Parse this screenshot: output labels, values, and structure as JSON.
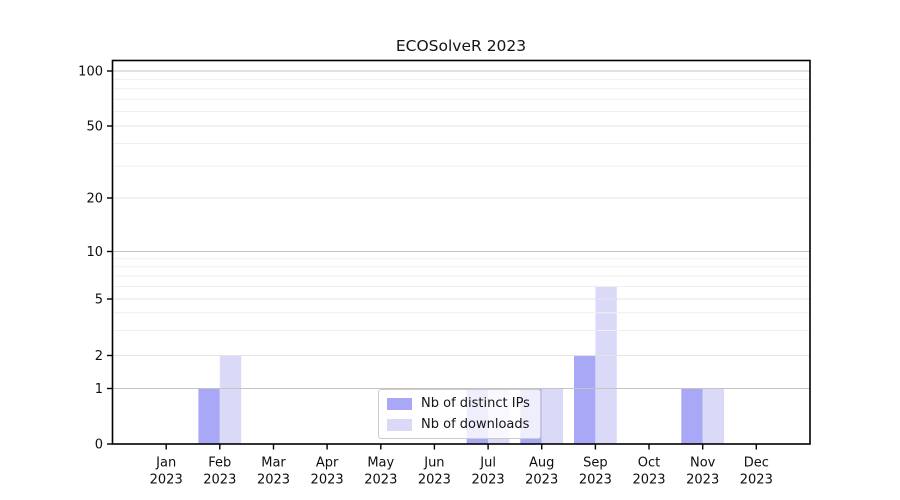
{
  "figure": {
    "background": "#ffffff"
  },
  "chart_data": {
    "type": "bar",
    "title": "ECOSolveR 2023",
    "categories": [
      "Jan",
      "Feb",
      "Mar",
      "Apr",
      "May",
      "Jun",
      "Jul",
      "Aug",
      "Sep",
      "Oct",
      "Nov",
      "Dec"
    ],
    "category_year": "2023",
    "series": [
      {
        "name": "Nb of distinct IPs",
        "color": "#a8a8f6",
        "values": [
          0,
          1,
          0,
          0,
          0,
          0,
          1,
          1,
          2,
          0,
          1,
          0
        ]
      },
      {
        "name": "Nb of downloads",
        "color": "#dadaf8",
        "values": [
          0,
          2,
          0,
          0,
          0,
          0,
          1,
          1,
          6,
          0,
          1,
          0
        ]
      }
    ],
    "yscale": "symlog",
    "ylim": [
      0,
      115
    ],
    "yticks": [
      100,
      50,
      20,
      10,
      5,
      2,
      1,
      0
    ],
    "major_decade_ticks": [
      1,
      10,
      100
    ],
    "sub_ticks": [
      2,
      5,
      20,
      50
    ],
    "minor_yticks": [
      3,
      4,
      6,
      7,
      8,
      9,
      30,
      40,
      60,
      70,
      80,
      90
    ],
    "grid": true,
    "legend_position": "lower-center-inside"
  },
  "colors": {
    "bar_distinct_ips": "#a8a8f6",
    "bar_downloads": "#dadaf8",
    "grid_major": "#c4c4c4",
    "grid_sub": "#e4e4e4",
    "grid_minor": "#efefef",
    "spine": "#000000",
    "tick_text": "#0f0f0f",
    "legend_border": "#cccccc"
  }
}
